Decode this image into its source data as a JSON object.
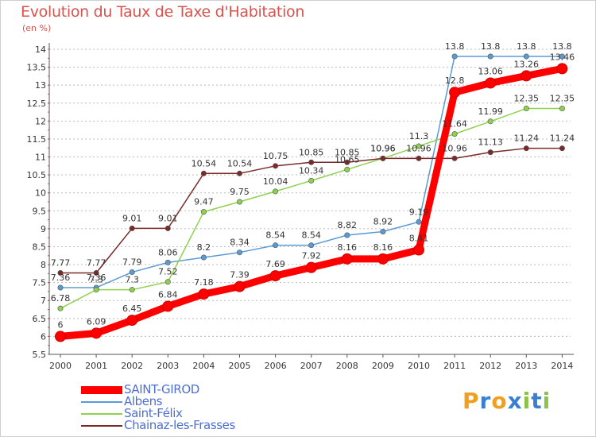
{
  "title": "Evolution du Taux de Taxe d'Habitation",
  "unit_label": "(en %)",
  "logo_text": "Proxiti",
  "colors": {
    "title": "#d9534f",
    "legend_text": "#4f6fd0",
    "axis": "#d9534f",
    "grid": "#bbbbbb"
  },
  "chart_data": {
    "type": "line",
    "title": "Evolution du Taux de Taxe d'Habitation",
    "ylabel": "(en %)",
    "xlabel": "",
    "x": [
      "2000",
      "2001",
      "2002",
      "2003",
      "2004",
      "2005",
      "2006",
      "2007",
      "2008",
      "2009",
      "2010",
      "2011",
      "2012",
      "2013",
      "2014"
    ],
    "y_ticks": [
      "5.5",
      "6",
      "6.5",
      "7",
      "7.5",
      "8",
      "8.5",
      "9",
      "9.5",
      "10",
      "10.5",
      "11",
      "11.5",
      "12",
      "12.5",
      "13",
      "13.5",
      "14"
    ],
    "ylim": [
      5.5,
      14
    ],
    "grid": "horizontal dashed",
    "legend_position": "bottom-left",
    "series": [
      {
        "name": "SAINT-GIROD",
        "color": "#ff0000",
        "emphasis": true,
        "values": [
          6,
          6.09,
          6.45,
          6.84,
          7.18,
          7.39,
          7.69,
          7.92,
          8.16,
          8.16,
          8.41,
          12.8,
          13.06,
          13.26,
          13.46
        ]
      },
      {
        "name": "Albens",
        "color": "#5b9bd5",
        "values": [
          7.36,
          7.36,
          7.79,
          8.06,
          8.2,
          8.34,
          8.54,
          8.54,
          8.82,
          8.92,
          9.19,
          13.8,
          13.8,
          13.8,
          13.8
        ]
      },
      {
        "name": "Saint-Félix",
        "color": "#8fd14f",
        "values": [
          6.78,
          7.3,
          7.3,
          7.52,
          9.47,
          9.75,
          10.04,
          10.34,
          10.65,
          10.96,
          11.3,
          11.64,
          11.99,
          12.35,
          12.35
        ]
      },
      {
        "name": "Chainaz-les-Frasses",
        "color": "#7b2a2a",
        "values": [
          7.77,
          7.77,
          9.01,
          9.01,
          10.54,
          10.54,
          10.75,
          10.85,
          10.85,
          10.96,
          10.96,
          10.96,
          11.13,
          11.24,
          11.24
        ]
      }
    ]
  }
}
